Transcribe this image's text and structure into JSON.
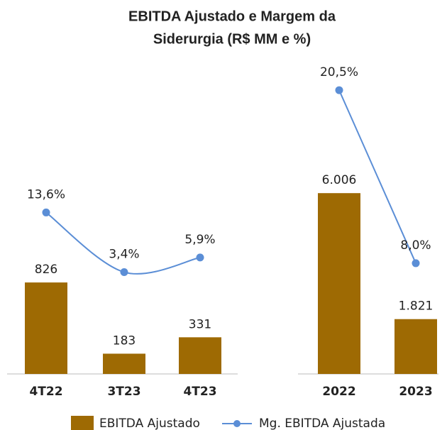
{
  "title_lines": [
    "EBITDA Ajustado e Margem da",
    "Siderurgia (R$ MM e %)"
  ],
  "chart_data": [
    {
      "type": "bar-line",
      "categories": [
        "4T22",
        "3T23",
        "4T23"
      ],
      "ylim": [
        0,
        2800
      ],
      "y2lim": [
        -14,
        39
      ],
      "series": [
        {
          "name": "EBITDA Ajustado",
          "color": "#9e6a03",
          "values": [
            826,
            183,
            331
          ]
        },
        {
          "name": "Mg. EBITDA Ajustada",
          "color": "#5b8ed6",
          "axis": "y2",
          "values": [
            13.6,
            3.4,
            5.9
          ],
          "value_labels": [
            "13,6%",
            "3,4%",
            "5,9%"
          ]
        }
      ]
    },
    {
      "type": "bar-line",
      "categories": [
        "2022",
        "2023"
      ],
      "ylim": [
        0,
        10300
      ],
      "y2lim": [
        0,
        22.4
      ],
      "series": [
        {
          "name": "EBITDA Ajustado",
          "color": "#9e6a03",
          "values": [
            6006,
            1821
          ],
          "value_labels": [
            "6.006",
            "1.821"
          ]
        },
        {
          "name": "Mg. EBITDA Ajustada",
          "color": "#5b8ed6",
          "axis": "y2",
          "values": [
            20.5,
            8.0
          ],
          "value_labels": [
            "20,5%",
            "8,0%"
          ]
        }
      ]
    }
  ]
}
